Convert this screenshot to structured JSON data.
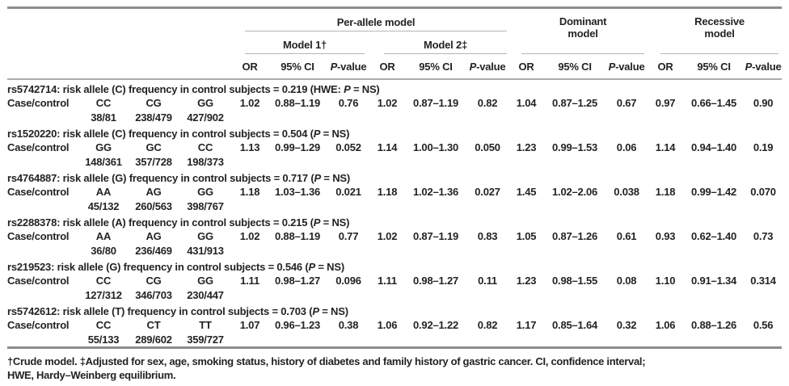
{
  "header": {
    "per_allele": "Per-allele model",
    "model1": "Model 1†",
    "model2": "Model 2‡",
    "dominant": "Dominant\nmodel",
    "recessive": "Recessive\nmodel",
    "or": "OR",
    "ci": "95% CI",
    "p": [
      {
        "text": "P",
        "italic": true
      },
      {
        "text": "-value"
      }
    ]
  },
  "groups": [
    {
      "title": [
        {
          "text": "rs5742714: risk allele (C) frequency in control subjects = 0.219 (HWE: "
        },
        {
          "text": "P",
          "italic": true
        },
        {
          "text": " = NS)"
        }
      ],
      "row_label": "Case/control",
      "genotypes": [
        "CC",
        "CG",
        "GG"
      ],
      "counts": [
        "38/81",
        "238/479",
        "427/902"
      ],
      "model1": {
        "or": "1.02",
        "ci": "0.88–1.19",
        "p": "0.76"
      },
      "model2": {
        "or": "1.02",
        "ci": "0.87–1.19",
        "p": "0.82"
      },
      "dominant": {
        "or": "1.04",
        "ci": "0.87–1.25",
        "p": "0.67"
      },
      "recessive": {
        "or": "0.97",
        "ci": "0.66–1.45",
        "p": "0.90"
      }
    },
    {
      "title": [
        {
          "text": "rs1520220: risk allele (C) frequency in control subjects = 0.504 ("
        },
        {
          "text": "P",
          "italic": true
        },
        {
          "text": " = NS)"
        }
      ],
      "row_label": "Case/control",
      "genotypes": [
        "GG",
        "GC",
        "CC"
      ],
      "counts": [
        "148/361",
        "357/728",
        "198/373"
      ],
      "model1": {
        "or": "1.13",
        "ci": "0.99–1.29",
        "p": "0.052"
      },
      "model2": {
        "or": "1.14",
        "ci": "1.00–1.30",
        "p": "0.050"
      },
      "dominant": {
        "or": "1.23",
        "ci": "0.99–1.53",
        "p": "0.06"
      },
      "recessive": {
        "or": "1.14",
        "ci": "0.94–1.40",
        "p": "0.19"
      }
    },
    {
      "title": [
        {
          "text": "rs4764887: risk allele (G) frequency in control subjects = 0.717 ("
        },
        {
          "text": "P",
          "italic": true
        },
        {
          "text": " = NS)"
        }
      ],
      "row_label": "Case/control",
      "genotypes": [
        "AA",
        "AG",
        "GG"
      ],
      "counts": [
        "45/132",
        "260/563",
        "398/767"
      ],
      "model1": {
        "or": "1.18",
        "ci": "1.03–1.36",
        "p": "0.021"
      },
      "model2": {
        "or": "1.18",
        "ci": "1.02–1.36",
        "p": "0.027"
      },
      "dominant": {
        "or": "1.45",
        "ci": "1.02–2.06",
        "p": "0.038"
      },
      "recessive": {
        "or": "1.18",
        "ci": "0.99–1.42",
        "p": "0.070"
      }
    },
    {
      "title": [
        {
          "text": "rs2288378: risk allele (A) frequency in control subjects = 0.215 ("
        },
        {
          "text": "P",
          "italic": true
        },
        {
          "text": " = NS)"
        }
      ],
      "row_label": "Case/control",
      "genotypes": [
        "AA",
        "AG",
        "GG"
      ],
      "counts": [
        "36/80",
        "236/469",
        "431/913"
      ],
      "model1": {
        "or": "1.02",
        "ci": "0.88–1.19",
        "p": "0.77"
      },
      "model2": {
        "or": "1.02",
        "ci": "0.87–1.19",
        "p": "0.83"
      },
      "dominant": {
        "or": "1.05",
        "ci": "0.87–1.26",
        "p": "0.61"
      },
      "recessive": {
        "or": "0.93",
        "ci": "0.62–1.40",
        "p": "0.73"
      }
    },
    {
      "title": [
        {
          "text": "rs219523: risk allele (G) frequency in control subjects = 0.546 ("
        },
        {
          "text": "P",
          "italic": true
        },
        {
          "text": " = NS)"
        }
      ],
      "row_label": "Case/control",
      "genotypes": [
        "CC",
        "CG",
        "GG"
      ],
      "counts": [
        "127/312",
        "346/703",
        "230/447"
      ],
      "model1": {
        "or": "1.11",
        "ci": "0.98–1.27",
        "p": "0.096"
      },
      "model2": {
        "or": "1.11",
        "ci": "0.98–1.27",
        "p": "0.11"
      },
      "dominant": {
        "or": "1.23",
        "ci": "0.98–1.55",
        "p": "0.08"
      },
      "recessive": {
        "or": "1.10",
        "ci": "0.91–1.34",
        "p": "0.314"
      }
    },
    {
      "title": [
        {
          "text": "rs5742612: risk allele (T) frequency in control subjects = 0.703 ("
        },
        {
          "text": "P",
          "italic": true
        },
        {
          "text": " = NS)"
        }
      ],
      "row_label": "Case/control",
      "genotypes": [
        "CC",
        "CT",
        "TT"
      ],
      "counts": [
        "55/133",
        "289/602",
        "359/727"
      ],
      "model1": {
        "or": "1.07",
        "ci": "0.96–1.23",
        "p": "0.38"
      },
      "model2": {
        "or": "1.06",
        "ci": "0.92–1.22",
        "p": "0.82"
      },
      "dominant": {
        "or": "1.17",
        "ci": "0.85–1.64",
        "p": "0.32"
      },
      "recessive": {
        "or": "1.06",
        "ci": "0.88–1.26",
        "p": "0.56"
      }
    }
  ],
  "footnote": "†Crude model. ‡Adjusted for sex, age, smoking status, history of diabetes and family history of gastric cancer. CI, confidence interval;\nHWE, Hardy–Weinberg equilibrium.",
  "colors": {
    "text": "#232323",
    "heavy_rule": "#8d8d8d",
    "mid_rule": "#acacac",
    "thin_rule": "#b6b6b6"
  }
}
